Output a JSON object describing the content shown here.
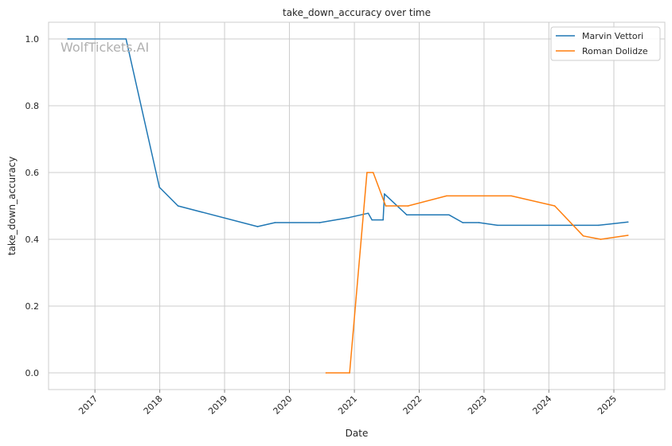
{
  "chart_data": {
    "type": "line",
    "title": "take_down_accuracy over time",
    "xlabel": "Date",
    "ylabel": "take_down_accuracy",
    "watermark": "WolfTickets.AI",
    "x_ticks": [
      "2017",
      "2018",
      "2019",
      "2020",
      "2021",
      "2022",
      "2023",
      "2024",
      "2025"
    ],
    "y_ticks": [
      "0.0",
      "0.2",
      "0.4",
      "0.6",
      "0.8",
      "1.0"
    ],
    "xlim": [
      "2016-04-15",
      "2025-10-15"
    ],
    "ylim": [
      -0.05,
      1.05
    ],
    "grid": true,
    "legend_position": "top-right",
    "series": [
      {
        "name": "Marvin Vettori",
        "color": "#1f77b4",
        "points": [
          [
            "2016-08-01",
            1.0
          ],
          [
            "2017-06-25",
            1.0
          ],
          [
            "2017-12-30",
            0.556
          ],
          [
            "2018-04-14",
            0.5
          ],
          [
            "2019-07-06",
            0.438
          ],
          [
            "2019-10-12",
            0.45
          ],
          [
            "2020-06-20",
            0.45
          ],
          [
            "2020-12-01",
            0.465
          ],
          [
            "2021-03-20",
            0.478
          ],
          [
            "2021-04-10",
            0.458
          ],
          [
            "2021-06-12",
            0.458
          ],
          [
            "2021-06-19",
            0.536
          ],
          [
            "2021-10-23",
            0.473
          ],
          [
            "2022-06-18",
            0.473
          ],
          [
            "2022-09-03",
            0.45
          ],
          [
            "2022-12-03",
            0.45
          ],
          [
            "2023-03-18",
            0.442
          ],
          [
            "2024-10-05",
            0.442
          ],
          [
            "2025-03-22",
            0.452
          ]
        ]
      },
      {
        "name": "Roman Dolidze",
        "color": "#ff7f0e",
        "points": [
          [
            "2020-07-25",
            0.0
          ],
          [
            "2020-12-05",
            0.0
          ],
          [
            "2021-03-13",
            0.6
          ],
          [
            "2021-04-17",
            0.6
          ],
          [
            "2021-06-26",
            0.5
          ],
          [
            "2021-10-30",
            0.5
          ],
          [
            "2022-06-04",
            0.53
          ],
          [
            "2023-06-03",
            0.53
          ],
          [
            "2024-02-03",
            0.5
          ],
          [
            "2024-07-13",
            0.41
          ],
          [
            "2024-10-19",
            0.4
          ],
          [
            "2025-03-22",
            0.412
          ]
        ]
      }
    ]
  }
}
